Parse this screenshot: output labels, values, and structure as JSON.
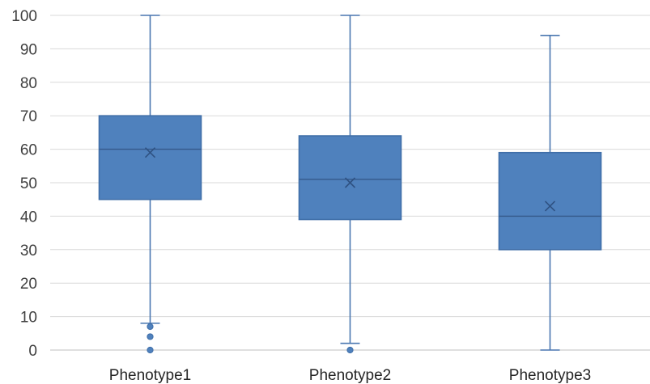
{
  "chart_data": {
    "type": "box",
    "title": "",
    "xlabel": "",
    "ylabel": "",
    "ylim": [
      0,
      100
    ],
    "yticks": [
      0,
      10,
      20,
      30,
      40,
      50,
      60,
      70,
      80,
      90,
      100
    ],
    "grid": true,
    "legend": "none",
    "categories": [
      "Phenotype1",
      "Phenotype2",
      "Phenotype3"
    ],
    "boxes": [
      {
        "category": "Phenotype1",
        "whisker_low": 8,
        "q1": 45,
        "median": 60,
        "q3": 70,
        "whisker_high": 100,
        "mean": 59,
        "outliers": [
          7,
          4,
          0
        ]
      },
      {
        "category": "Phenotype2",
        "whisker_low": 2,
        "q1": 39,
        "median": 51,
        "q3": 64,
        "whisker_high": 100,
        "mean": 50,
        "outliers": [
          0
        ]
      },
      {
        "category": "Phenotype3",
        "whisker_low": 0,
        "q1": 30,
        "median": 40,
        "q3": 59,
        "whisker_high": 94,
        "mean": 43,
        "outliers": []
      }
    ],
    "colors": {
      "box_fill": "#4f81bd",
      "box_stroke": "#3f6ea8",
      "whisker": "#4a77b0",
      "grid": "#d9d9d9",
      "text": "#404040"
    }
  }
}
